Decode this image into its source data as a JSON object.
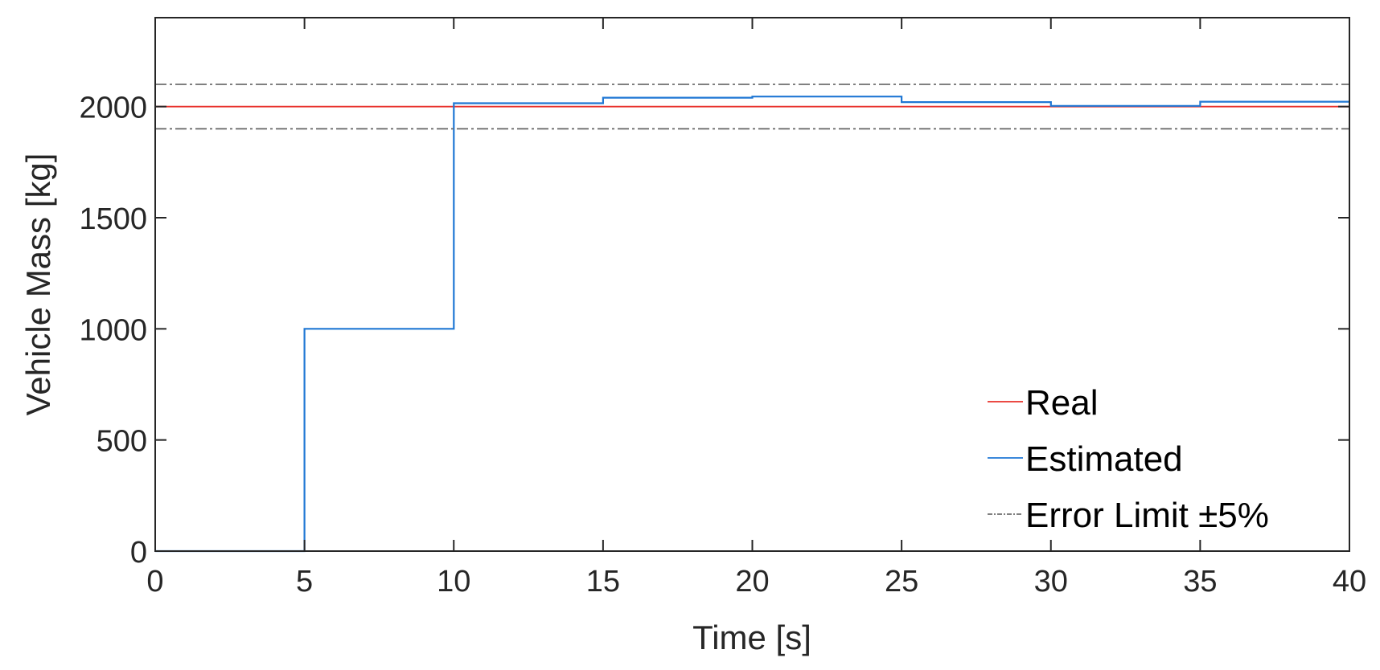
{
  "chart_data": {
    "type": "line",
    "title": "",
    "xlabel": "Time [s]",
    "ylabel": "Vehicle Mass [kg]",
    "xlim": [
      0,
      40
    ],
    "ylim": [
      0,
      2400
    ],
    "x_ticks": [
      0,
      5,
      10,
      15,
      20,
      25,
      30,
      35,
      40
    ],
    "x_tick_labels": [
      "0",
      "5",
      "10",
      "15",
      "20",
      "25",
      "30",
      "35",
      "40"
    ],
    "y_ticks": [
      0,
      500,
      1000,
      1500,
      2000
    ],
    "y_tick_labels": [
      "0",
      "500",
      "1000",
      "1500",
      "2000"
    ],
    "grid": false,
    "box": true,
    "legend_position": "bottom-right",
    "series": [
      {
        "name": "Real",
        "color": "#e8302a",
        "style": "solid",
        "step": false,
        "x": [
          0,
          40
        ],
        "y": [
          2000,
          2000
        ]
      },
      {
        "name": "Estimated",
        "color": "#1f77d4",
        "style": "solid",
        "step": true,
        "x": [
          0,
          5,
          10,
          15,
          20,
          25,
          30,
          35,
          40
        ],
        "y": [
          0,
          1000,
          2015,
          2040,
          2045,
          2020,
          2003,
          2022,
          2022
        ]
      },
      {
        "name": "Error Limit ±5%",
        "color": "#6e6e6e",
        "style": "dashdot",
        "step": false,
        "x": [
          0,
          40
        ],
        "y": [
          2100,
          2100
        ]
      },
      {
        "name": "",
        "color": "#6e6e6e",
        "style": "dashdot",
        "step": false,
        "x": [
          0,
          40
        ],
        "y": [
          1900,
          1900
        ]
      }
    ]
  }
}
